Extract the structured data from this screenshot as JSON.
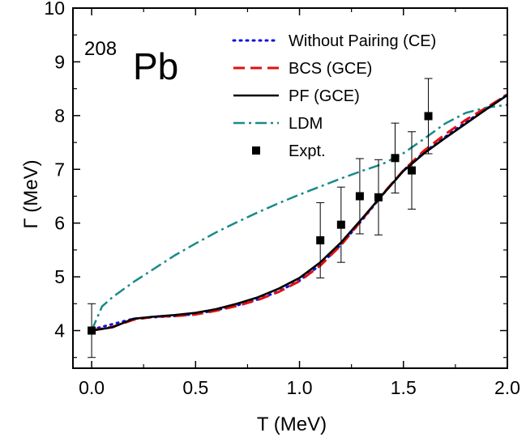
{
  "chart_data": {
    "type": "line",
    "annotation": {
      "mass_number": "208",
      "element": "Pb"
    },
    "xlabel": "T (MeV)",
    "ylabel": "Γ (MeV)",
    "xlim": [
      -0.09,
      2.0
    ],
    "ylim": [
      3.3,
      10.0
    ],
    "xticks": [
      0.0,
      0.5,
      1.0,
      1.5,
      2.0
    ],
    "xtick_labels": [
      "0.0",
      "0.5",
      "1.0",
      "1.5",
      "2.0"
    ],
    "yticks": [
      4,
      5,
      6,
      7,
      8,
      9,
      10
    ],
    "ytick_labels": [
      "4",
      "5",
      "6",
      "7",
      "8",
      "9",
      "10"
    ],
    "legend_position": "top-right",
    "grid": false,
    "series": [
      {
        "name": "Without Pairing (CE)",
        "style": "dotted",
        "color": "#1010e0",
        "x": [
          0.0,
          0.1,
          0.2,
          0.3,
          0.4,
          0.5,
          0.6,
          0.7,
          0.8,
          0.9,
          1.0,
          1.1,
          1.2,
          1.3,
          1.4,
          1.5,
          1.6,
          1.7,
          1.8,
          1.9,
          2.0
        ],
        "y": [
          4.02,
          4.12,
          4.22,
          4.25,
          4.27,
          4.31,
          4.38,
          4.47,
          4.58,
          4.73,
          4.93,
          5.22,
          5.6,
          6.05,
          6.53,
          6.98,
          7.32,
          7.6,
          7.88,
          8.12,
          8.4
        ]
      },
      {
        "name": "BCS (GCE)",
        "style": "dashed",
        "color": "#e01010",
        "x": [
          0.0,
          0.1,
          0.2,
          0.3,
          0.4,
          0.5,
          0.6,
          0.7,
          0.8,
          0.9,
          1.0,
          1.1,
          1.2,
          1.3,
          1.4,
          1.5,
          1.6,
          1.7,
          1.8,
          1.9,
          2.0
        ],
        "y": [
          4.0,
          4.07,
          4.2,
          4.26,
          4.27,
          4.3,
          4.37,
          4.46,
          4.57,
          4.72,
          4.92,
          5.21,
          5.59,
          6.06,
          6.54,
          6.98,
          7.35,
          7.65,
          7.92,
          8.15,
          8.39
        ]
      },
      {
        "name": "PF (GCE)",
        "style": "solid",
        "color": "#000000",
        "x": [
          0.0,
          0.1,
          0.2,
          0.3,
          0.4,
          0.5,
          0.6,
          0.7,
          0.8,
          0.9,
          1.0,
          1.1,
          1.2,
          1.3,
          1.4,
          1.5,
          1.6,
          1.7,
          1.8,
          1.9,
          2.0
        ],
        "y": [
          4.0,
          4.06,
          4.22,
          4.26,
          4.29,
          4.33,
          4.4,
          4.5,
          4.62,
          4.78,
          4.98,
          5.27,
          5.64,
          6.08,
          6.53,
          6.97,
          7.3,
          7.58,
          7.85,
          8.12,
          8.38
        ]
      },
      {
        "name": "LDM",
        "style": "dashdot",
        "color": "#1a8a8a",
        "x": [
          0.0,
          0.05,
          0.1,
          0.2,
          0.3,
          0.4,
          0.5,
          0.6,
          0.7,
          0.8,
          0.9,
          1.0,
          1.1,
          1.2,
          1.3,
          1.4,
          1.5,
          1.6,
          1.7,
          1.8,
          1.9,
          2.0
        ],
        "y": [
          4.0,
          4.45,
          4.62,
          4.9,
          5.15,
          5.4,
          5.62,
          5.83,
          6.02,
          6.2,
          6.37,
          6.53,
          6.68,
          6.83,
          6.97,
          7.1,
          7.3,
          7.57,
          7.85,
          8.05,
          8.15,
          8.2
        ]
      },
      {
        "name": "Expt.",
        "style": "markers",
        "color": "#000000",
        "x": [
          0.0,
          1.1,
          1.2,
          1.29,
          1.38,
          1.46,
          1.54,
          1.62
        ],
        "y": [
          4.0,
          5.68,
          5.97,
          6.5,
          6.48,
          7.21,
          6.98,
          7.99
        ],
        "yerr": [
          0.5,
          0.7,
          0.7,
          0.7,
          0.7,
          0.65,
          0.72,
          0.7
        ]
      }
    ]
  }
}
